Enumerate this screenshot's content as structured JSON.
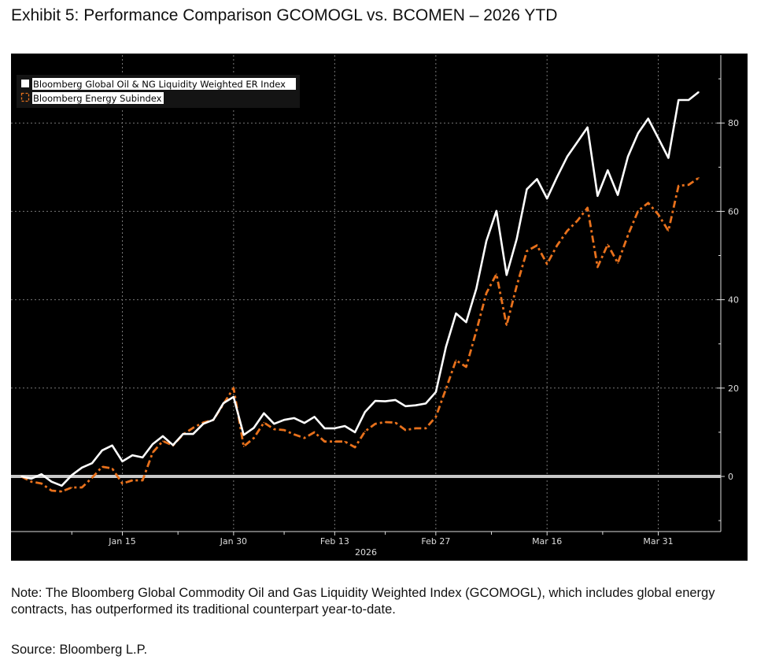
{
  "title": "Exhibit 5: Performance Comparison GCOMOGL vs. BCOMEN – 2026 YTD",
  "note": "Note: The Bloomberg Global Commodity Oil and Gas Liquidity Weighted Index (GCOMOGL), which includes global energy contracts, has outperformed its traditional counterpart year-to-date.",
  "source": "Source: Bloomberg L.P.",
  "chart_data": {
    "type": "line",
    "background": "#000000",
    "grid": true,
    "legend_position": "top-left",
    "year_label": "2026",
    "x_tick_labels": [
      {
        "label": "Jan 15",
        "date": "2026-01-15"
      },
      {
        "label": "Jan 30",
        "date": "2026-01-30"
      },
      {
        "label": "Feb 13",
        "date": "2026-02-13"
      },
      {
        "label": "Feb 27",
        "date": "2026-02-27"
      },
      {
        "label": "Mar 16",
        "date": "2026-03-16"
      },
      {
        "label": "Mar 31",
        "date": "2026-03-31"
      }
    ],
    "y_ticks": [
      0,
      20,
      40,
      60,
      80
    ],
    "y_tick_labels": [
      "0",
      "20",
      "40",
      "60",
      "80"
    ],
    "ylim": [
      -12.5,
      95
    ],
    "reference_line": 0,
    "x": [
      "2025-12-31",
      "2026-01-02",
      "2026-01-05",
      "2026-01-06",
      "2026-01-07",
      "2026-01-08",
      "2026-01-09",
      "2026-01-12",
      "2026-01-13",
      "2026-01-14",
      "2026-01-15",
      "2026-01-16",
      "2026-01-19",
      "2026-01-20",
      "2026-01-21",
      "2026-01-22",
      "2026-01-23",
      "2026-01-26",
      "2026-01-27",
      "2026-01-28",
      "2026-01-29",
      "2026-01-30",
      "2026-02-02",
      "2026-02-03",
      "2026-02-04",
      "2026-02-05",
      "2026-02-06",
      "2026-02-09",
      "2026-02-10",
      "2026-02-11",
      "2026-02-12",
      "2026-02-13",
      "2026-02-16",
      "2026-02-17",
      "2026-02-18",
      "2026-02-19",
      "2026-02-20",
      "2026-02-23",
      "2026-02-24",
      "2026-02-25",
      "2026-02-26",
      "2026-02-27",
      "2026-03-02",
      "2026-03-03",
      "2026-03-04",
      "2026-03-05",
      "2026-03-06",
      "2026-03-09",
      "2026-03-10",
      "2026-03-11",
      "2026-03-12",
      "2026-03-13",
      "2026-03-16",
      "2026-03-17",
      "2026-03-18",
      "2026-03-19",
      "2026-03-20",
      "2026-03-23",
      "2026-03-24",
      "2026-03-25",
      "2026-03-26",
      "2026-03-27",
      "2026-03-30",
      "2026-03-31",
      "2026-04-01",
      "2026-04-02",
      "2026-04-03",
      "2026-04-06"
    ],
    "series": [
      {
        "name": "Bloomberg Global Oil & NG Liquidity Weighted ER Index",
        "color": "#ffffff",
        "style": "solid",
        "values": [
          0,
          -0.5,
          0.5,
          -1.2,
          -2.1,
          0.3,
          2.0,
          3.0,
          5.9,
          7.0,
          3.4,
          4.8,
          4.3,
          7.3,
          9.1,
          7.1,
          9.6,
          9.6,
          11.9,
          12.8,
          16.6,
          18.0,
          9.4,
          11.0,
          14.3,
          11.9,
          12.8,
          13.2,
          12.1,
          13.5,
          10.9,
          10.9,
          11.4,
          10.0,
          14.6,
          17.1,
          17.0,
          17.3,
          15.9,
          16.1,
          16.5,
          19.1,
          29.3,
          36.9,
          34.9,
          42.5,
          53.3,
          60.1,
          45.6,
          53.7,
          65.0,
          67.3,
          62.9,
          67.8,
          72.4,
          75.7,
          79.0,
          63.5,
          69.3,
          63.7,
          72.4,
          77.7,
          81.0,
          76.6,
          72.1,
          85.2,
          85.2,
          87.0
        ]
      },
      {
        "name": "Bloomberg Energy Subindex",
        "color": "#e8711c",
        "style": "dash-dot",
        "values": [
          0,
          -1.2,
          -1.6,
          -3.2,
          -3.4,
          -2.5,
          -2.5,
          -0.3,
          2.2,
          1.8,
          -1.6,
          -0.9,
          -0.9,
          5.4,
          8.0,
          7.0,
          9.5,
          11.0,
          12.2,
          12.8,
          16.4,
          20.0,
          6.8,
          8.7,
          12.2,
          10.7,
          10.5,
          9.5,
          8.7,
          10.0,
          7.9,
          7.9,
          7.9,
          6.6,
          10.2,
          11.9,
          12.3,
          12.2,
          10.5,
          10.9,
          10.9,
          13.5,
          19.8,
          26.3,
          24.8,
          32.9,
          41.5,
          45.8,
          34.2,
          43.1,
          51.0,
          52.3,
          48.1,
          52.3,
          55.6,
          57.9,
          60.8,
          47.4,
          52.5,
          48.3,
          54.6,
          60.1,
          61.9,
          59.3,
          55.6,
          65.8,
          66.0,
          67.6
        ]
      }
    ]
  }
}
